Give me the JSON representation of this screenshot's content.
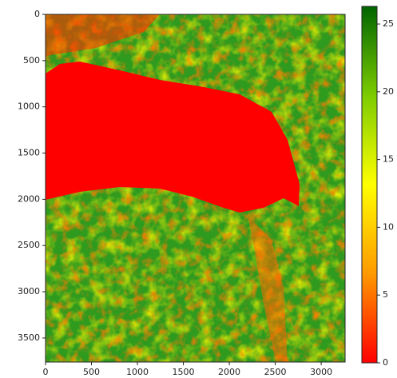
{
  "chart_data": {
    "type": "image",
    "xlim": [
      0,
      3260
    ],
    "xticks": [
      0,
      500,
      1000,
      1500,
      2000,
      2500,
      3000
    ],
    "ylim": [
      3760,
      0
    ],
    "yticks": [
      0,
      500,
      1000,
      1500,
      2000,
      2500,
      3000,
      3500
    ],
    "colorbar": {
      "lim": [
        0,
        26.3
      ],
      "ticks": [
        0,
        5,
        10,
        15,
        20,
        25
      ],
      "colors": [
        "#ff0000",
        "#ff9900",
        "#ffff00",
        "#7ccc00",
        "#006400"
      ]
    }
  }
}
